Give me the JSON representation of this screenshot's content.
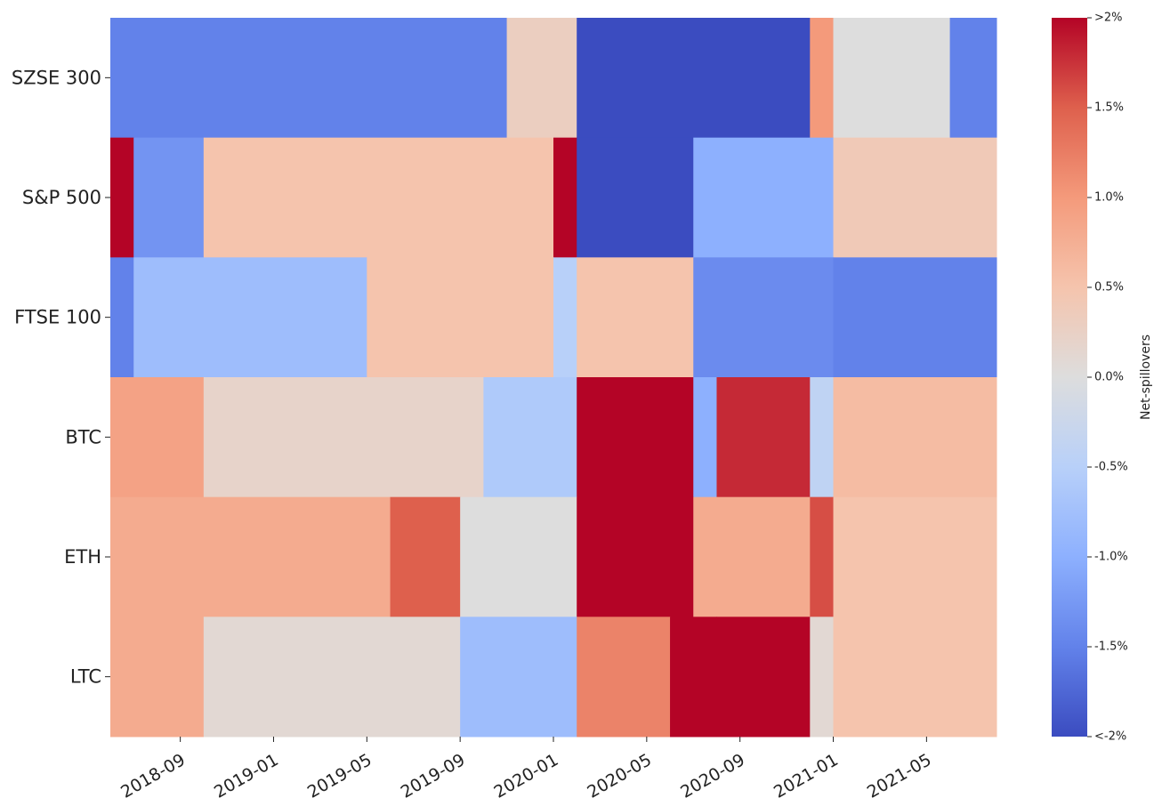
{
  "chart_data": {
    "type": "heatmap",
    "colormap": "coolwarm",
    "x_start": "2018-06",
    "x_end": "2021-08",
    "x_tick_labels": [
      "2018-09",
      "2019-01",
      "2019-05",
      "2019-09",
      "2020-01",
      "2020-05",
      "2020-09",
      "2021-01",
      "2021-05"
    ],
    "vmin": -2,
    "vmax": 2,
    "colorbar": {
      "label": "Net-spillovers",
      "tick_labels": [
        ">2%",
        "1.5%",
        "1.0%",
        "0.5%",
        "0.0%",
        "-0.5%",
        "-1.0%",
        "-1.5%",
        "<-2%"
      ],
      "tick_values": [
        2,
        1.5,
        1.0,
        0.5,
        0.0,
        -0.5,
        -1.0,
        -1.5,
        -2
      ]
    },
    "rows": [
      {
        "label": "SZSE 300",
        "segments": [
          {
            "start": "2018-06",
            "end": "2019-11",
            "value": -1.5
          },
          {
            "start": "2019-11",
            "end": "2020-02",
            "value": 0.3
          },
          {
            "start": "2020-02",
            "end": "2020-07",
            "value": -2.0
          },
          {
            "start": "2020-07",
            "end": "2020-12",
            "value": -2.0
          },
          {
            "start": "2020-12",
            "end": "2021-01",
            "value": 1.0
          },
          {
            "start": "2021-01",
            "end": "2021-06",
            "value": 0.0
          },
          {
            "start": "2021-06",
            "end": "2021-08",
            "value": -1.5
          }
        ]
      },
      {
        "label": "S&P 500",
        "segments": [
          {
            "start": "2018-06",
            "end": "2018-07",
            "value": 2.0
          },
          {
            "start": "2018-07",
            "end": "2018-10",
            "value": -1.3
          },
          {
            "start": "2018-10",
            "end": "2020-01",
            "value": 0.5
          },
          {
            "start": "2020-01",
            "end": "2020-02",
            "value": 2.0
          },
          {
            "start": "2020-02",
            "end": "2020-07",
            "value": -2.0
          },
          {
            "start": "2020-07",
            "end": "2021-01",
            "value": -1.0
          },
          {
            "start": "2021-01",
            "end": "2021-08",
            "value": 0.4
          }
        ]
      },
      {
        "label": "FTSE 100",
        "segments": [
          {
            "start": "2018-06",
            "end": "2018-07",
            "value": -1.5
          },
          {
            "start": "2018-07",
            "end": "2019-05",
            "value": -0.8
          },
          {
            "start": "2019-05",
            "end": "2020-01",
            "value": 0.5
          },
          {
            "start": "2020-01",
            "end": "2020-02",
            "value": -0.5
          },
          {
            "start": "2020-02",
            "end": "2020-07",
            "value": 0.5
          },
          {
            "start": "2020-07",
            "end": "2021-01",
            "value": -1.4
          },
          {
            "start": "2021-01",
            "end": "2021-08",
            "value": -1.5
          }
        ]
      },
      {
        "label": "BTC",
        "segments": [
          {
            "start": "2018-06",
            "end": "2018-10",
            "value": 0.9
          },
          {
            "start": "2018-10",
            "end": "2019-10",
            "value": 0.2
          },
          {
            "start": "2019-10",
            "end": "2020-02",
            "value": -0.6
          },
          {
            "start": "2020-02",
            "end": "2020-07",
            "value": 2.0
          },
          {
            "start": "2020-07",
            "end": "2020-08",
            "value": -1.0
          },
          {
            "start": "2020-08",
            "end": "2020-12",
            "value": 1.8
          },
          {
            "start": "2020-12",
            "end": "2021-01",
            "value": -0.4
          },
          {
            "start": "2021-01",
            "end": "2021-08",
            "value": 0.6
          }
        ]
      },
      {
        "label": "ETH",
        "segments": [
          {
            "start": "2018-06",
            "end": "2019-06",
            "value": 0.8
          },
          {
            "start": "2019-06",
            "end": "2019-09",
            "value": 1.5
          },
          {
            "start": "2019-09",
            "end": "2020-02",
            "value": 0.0
          },
          {
            "start": "2020-02",
            "end": "2020-07",
            "value": 2.0
          },
          {
            "start": "2020-07",
            "end": "2020-12",
            "value": 0.8
          },
          {
            "start": "2020-12",
            "end": "2021-01",
            "value": 1.6
          },
          {
            "start": "2021-01",
            "end": "2021-08",
            "value": 0.5
          }
        ]
      },
      {
        "label": "LTC",
        "segments": [
          {
            "start": "2018-06",
            "end": "2018-10",
            "value": 0.8
          },
          {
            "start": "2018-10",
            "end": "2019-09",
            "value": 0.1
          },
          {
            "start": "2019-09",
            "end": "2020-02",
            "value": -0.8
          },
          {
            "start": "2020-02",
            "end": "2020-06",
            "value": 1.2
          },
          {
            "start": "2020-06",
            "end": "2020-08",
            "value": 2.0
          },
          {
            "start": "2020-08",
            "end": "2020-12",
            "value": 2.0
          },
          {
            "start": "2020-12",
            "end": "2021-01",
            "value": 0.1
          },
          {
            "start": "2021-01",
            "end": "2021-08",
            "value": 0.5
          }
        ]
      }
    ]
  }
}
